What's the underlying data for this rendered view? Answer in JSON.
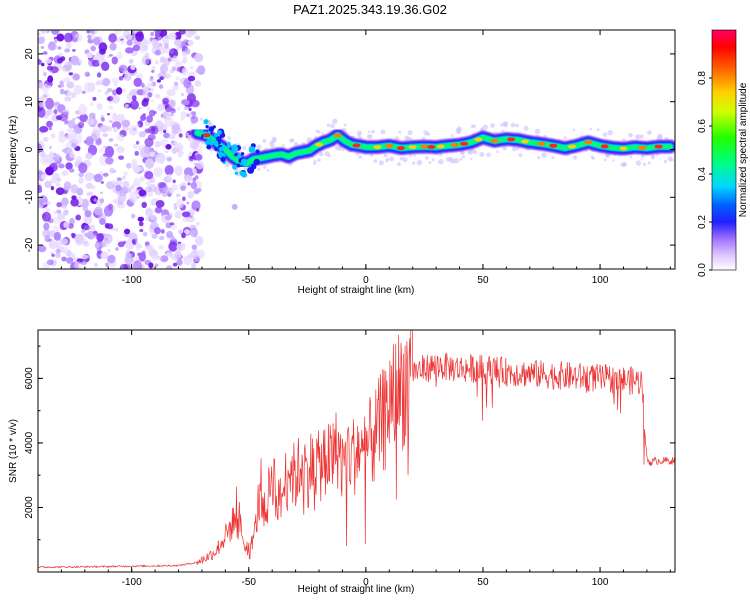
{
  "page_title": "PAZ1.2025.343.19.36.G02",
  "chart_data": [
    {
      "type": "heatmap",
      "title": "PAZ1.2025.343.19.36.G02",
      "xlabel": "Height of straight line (km)",
      "ylabel": "Frequency (Hz)",
      "xlim": [
        -140,
        132
      ],
      "ylim": [
        -25,
        25
      ],
      "xticks": [
        -100,
        -50,
        0,
        50,
        100
      ],
      "yticks": [
        -20,
        -10,
        0,
        10,
        20
      ],
      "xtick_labels": [
        "-100",
        "-50",
        "0",
        "50",
        "100"
      ],
      "ytick_labels": [
        "-20",
        "-10",
        "0",
        "10",
        "20"
      ],
      "noise_region_km": [
        -140,
        -72
      ],
      "ridge": {
        "x": [
          -72,
          -68,
          -64,
          -60,
          -57,
          -54,
          -51,
          -48,
          -45,
          -42,
          -39,
          -36,
          -33,
          -30,
          -27,
          -24,
          -21,
          -18,
          -15,
          -12,
          -9,
          -6,
          -3,
          0,
          5,
          10,
          15,
          20,
          25,
          30,
          35,
          40,
          45,
          50,
          55,
          60,
          65,
          70,
          75,
          80,
          85,
          90,
          95,
          100,
          105,
          110,
          115,
          120,
          125,
          130
        ],
        "frequency": [
          3.5,
          3.0,
          1.5,
          0.0,
          -1.5,
          -2.5,
          -3.0,
          -2.0,
          -1.8,
          -1.5,
          -1.2,
          -1.0,
          -1.5,
          -0.8,
          -0.5,
          -0.2,
          0.8,
          1.5,
          2.0,
          3.0,
          1.8,
          1.0,
          0.8,
          0.5,
          0.5,
          0.8,
          0.3,
          0.5,
          0.6,
          0.5,
          0.8,
          1.0,
          1.5,
          2.5,
          1.8,
          2.2,
          2.0,
          1.5,
          1.2,
          0.8,
          0.3,
          0.8,
          1.5,
          0.8,
          0.4,
          0.2,
          0.5,
          0.3,
          0.6,
          0.6
        ]
      },
      "colorbar": {
        "label": "Normalized spectral amplitude",
        "range": [
          0,
          1
        ],
        "ticks": [
          0,
          0.2,
          0.4,
          0.6,
          0.8
        ],
        "tick_labels": [
          "0.0",
          "0.2",
          "0.4",
          "0.6",
          "0.8"
        ],
        "colors": [
          "#ffffff",
          "#b9a5ff",
          "#7a35ff",
          "#0000ff",
          "#00d8ff",
          "#00ff00",
          "#ffff00",
          "#ff7f00",
          "#ff0000",
          "#ff0066"
        ]
      }
    },
    {
      "type": "line",
      "xlabel": "Height of straight line (km)",
      "ylabel": "SNR (10 * v/v)",
      "xlim": [
        -140,
        132
      ],
      "ylim": [
        0,
        7500
      ],
      "xticks": [
        -100,
        -50,
        0,
        50,
        100
      ],
      "yticks": [
        2000,
        4000,
        6000
      ],
      "xtick_labels": [
        "-100",
        "-50",
        "0",
        "50",
        "100"
      ],
      "ytick_labels": [
        "2000",
        "4000",
        "6000"
      ],
      "series": [
        {
          "name": "SNR",
          "color": "#ee3333",
          "x": [
            -140,
            -120,
            -100,
            -80,
            -72,
            -68,
            -64,
            -60,
            -57,
            -55,
            -53,
            -50,
            -47,
            -45,
            -43,
            -40,
            -37,
            -35,
            -33,
            -30,
            -27,
            -25,
            -22,
            -20,
            -17,
            -15,
            -12,
            -10,
            -7,
            -5,
            -3,
            -1,
            0,
            3,
            5,
            8,
            10,
            13,
            15,
            18,
            20,
            25,
            30,
            35,
            40,
            50,
            60,
            70,
            80,
            90,
            100,
            110,
            118,
            119,
            120,
            121,
            125,
            130
          ],
          "y": [
            150,
            160,
            180,
            200,
            300,
            450,
            650,
            1100,
            1500,
            2100,
            1200,
            700,
            1400,
            2800,
            1700,
            3200,
            2100,
            2600,
            3300,
            2900,
            3500,
            3000,
            3600,
            3200,
            3700,
            3400,
            3900,
            3300,
            3800,
            3600,
            3900,
            3400,
            3900,
            4100,
            4400,
            4800,
            5300,
            5500,
            5700,
            6000,
            6200,
            6300,
            6400,
            6350,
            6300,
            6300,
            6200,
            6150,
            6100,
            6050,
            6000,
            5950,
            5900,
            4500,
            3500,
            3400,
            3450,
            3450
          ]
        }
      ]
    }
  ]
}
